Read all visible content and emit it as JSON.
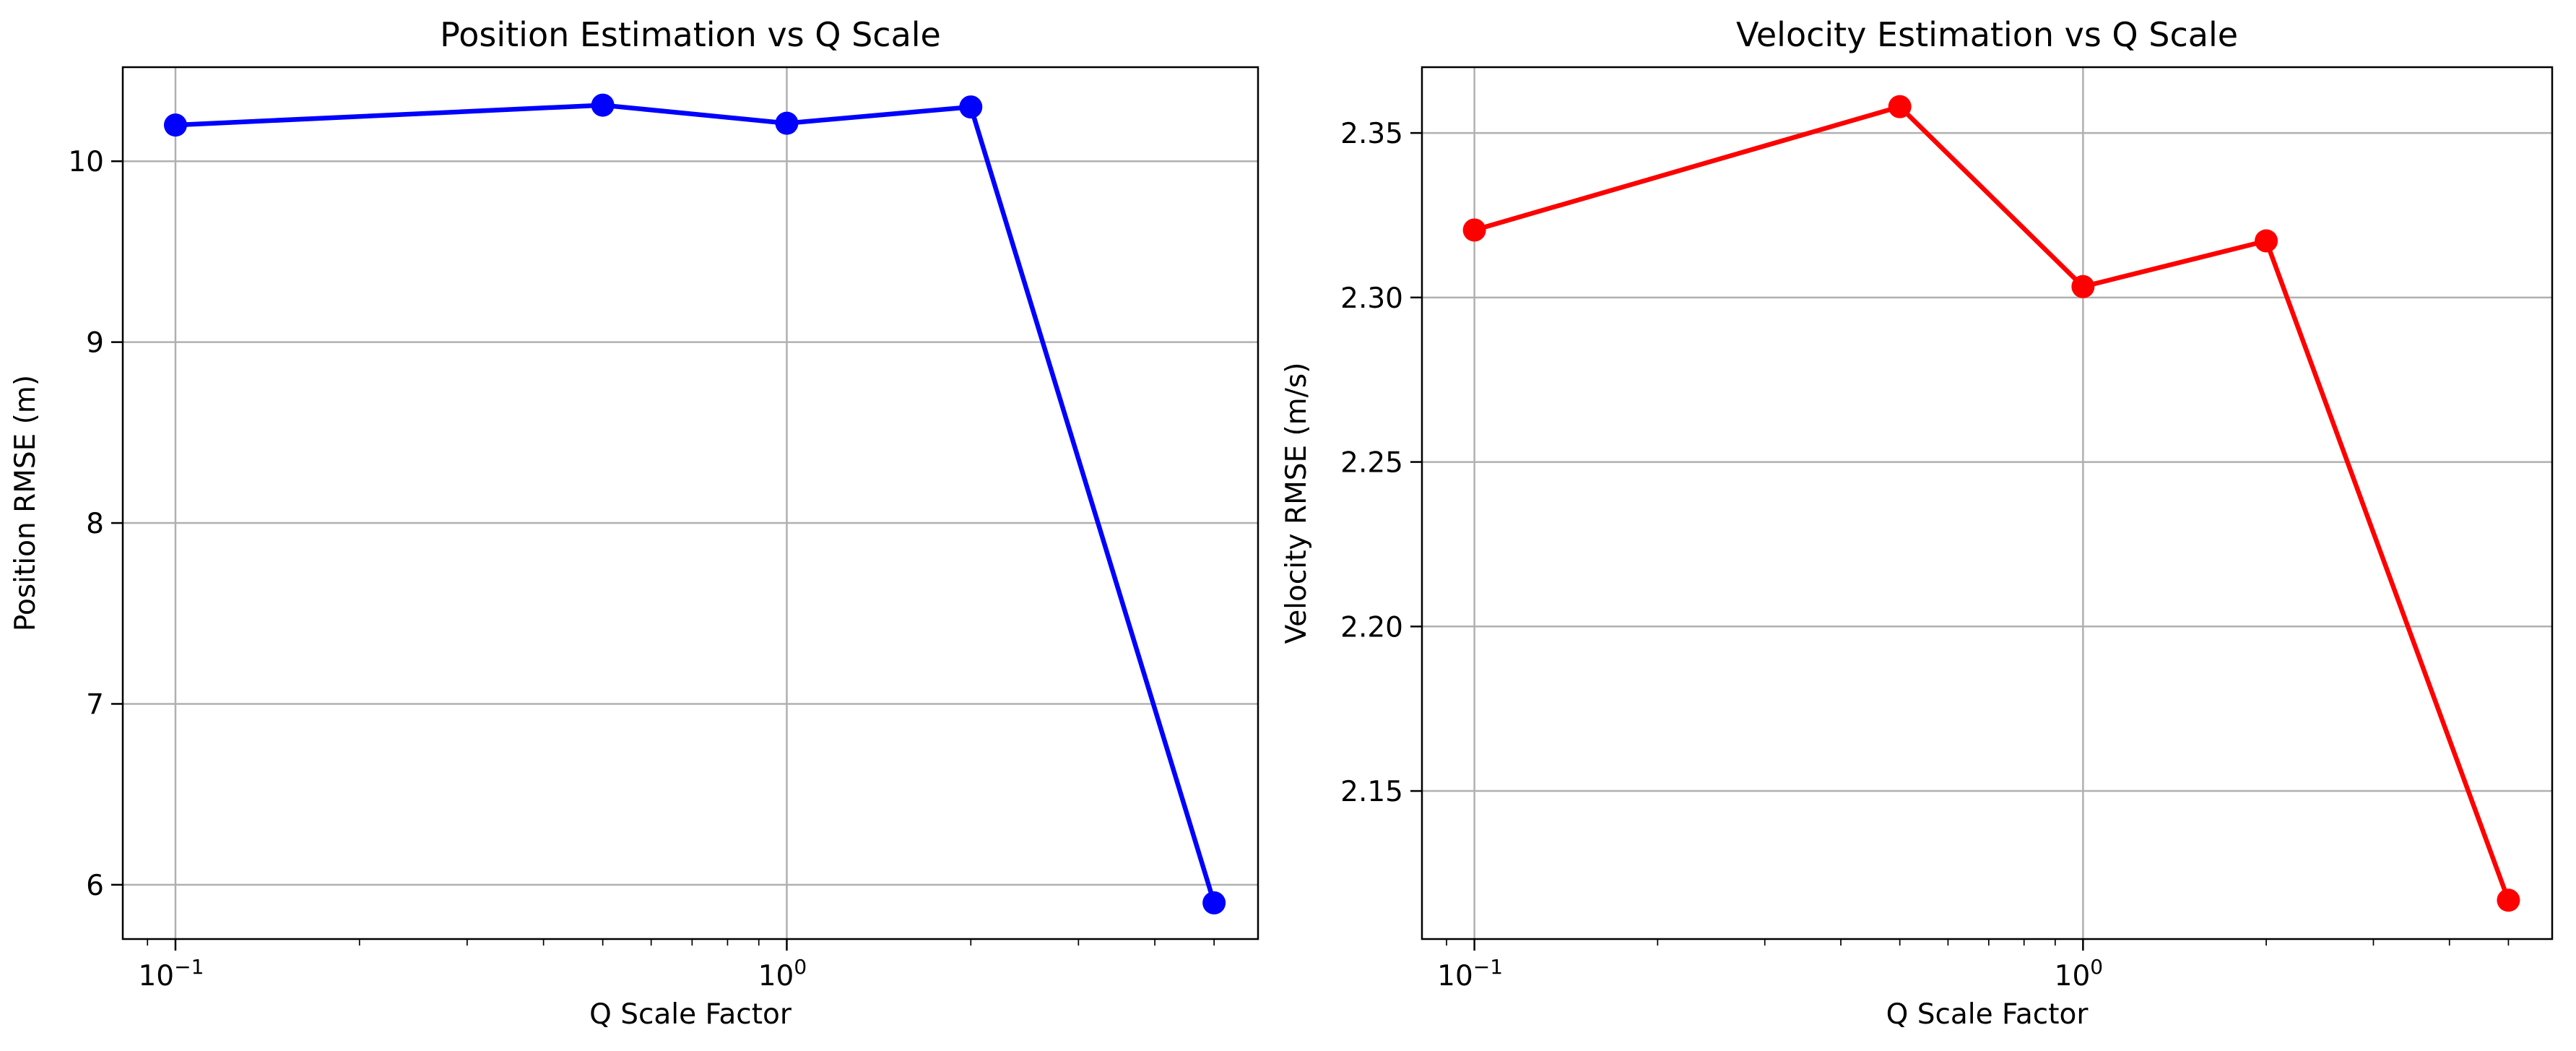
{
  "chart_data": [
    {
      "type": "line",
      "title": "Position Estimation vs Q Scale",
      "xlabel": "Q Scale Factor",
      "ylabel": "Position RMSE (m)",
      "xscale": "log",
      "xlim": [
        0.082,
        5.9
      ],
      "ylim": [
        5.7,
        10.52
      ],
      "x": [
        0.1,
        0.5,
        1.0,
        2.0,
        5.0
      ],
      "series": [
        {
          "values": [
            10.2,
            10.31,
            10.21,
            10.3,
            5.9
          ],
          "color": "#0000ff"
        }
      ],
      "xticks": [
        {
          "value": 0.1,
          "base": "10",
          "exp": "−1"
        },
        {
          "value": 1.0,
          "base": "10",
          "exp": "0"
        }
      ],
      "yticks": [
        {
          "value": 6,
          "label": "6"
        },
        {
          "value": 7,
          "label": "7"
        },
        {
          "value": 8,
          "label": "8"
        },
        {
          "value": 9,
          "label": "9"
        },
        {
          "value": 10,
          "label": "10"
        }
      ],
      "grid": true
    },
    {
      "type": "line",
      "title": "Velocity Estimation vs Q Scale",
      "xlabel": "Q Scale Factor",
      "ylabel": "Velocity RMSE (m/s)",
      "xscale": "log",
      "xlim": [
        0.082,
        5.9
      ],
      "ylim": [
        2.105,
        2.37
      ],
      "x": [
        0.1,
        0.5,
        1.0,
        2.0,
        5.0
      ],
      "series": [
        {
          "values": [
            2.3205,
            2.358,
            2.3033,
            2.3172,
            2.1168
          ],
          "color": "#ff0000"
        }
      ],
      "xticks": [
        {
          "value": 0.1,
          "base": "10",
          "exp": "−1"
        },
        {
          "value": 1.0,
          "base": "10",
          "exp": "0"
        }
      ],
      "yticks": [
        {
          "value": 2.15,
          "label": "2.15"
        },
        {
          "value": 2.2,
          "label": "2.20"
        },
        {
          "value": 2.25,
          "label": "2.25"
        },
        {
          "value": 2.3,
          "label": "2.30"
        },
        {
          "value": 2.35,
          "label": "2.35"
        }
      ],
      "grid": true
    }
  ]
}
